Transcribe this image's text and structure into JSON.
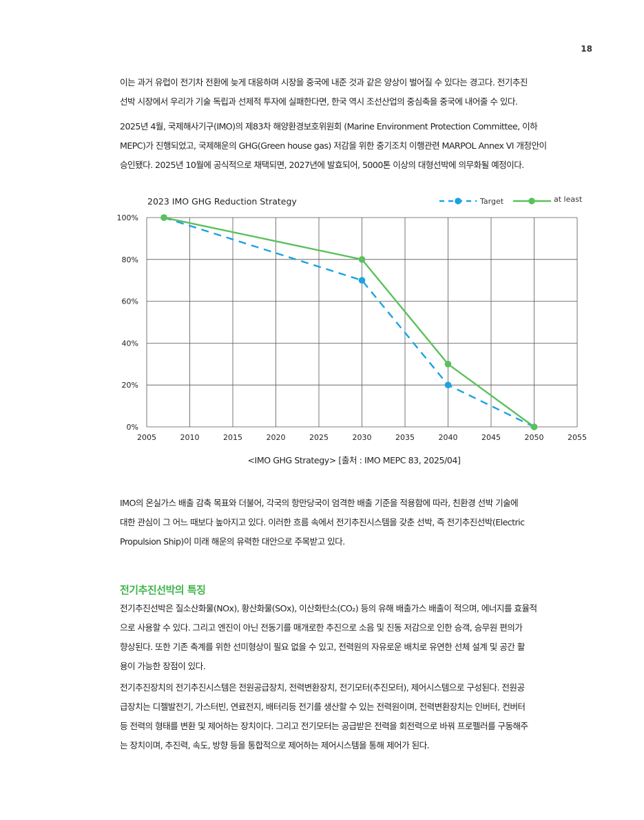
{
  "page": {
    "number": "18"
  },
  "paragraphs": [
    {
      "lines": [
        "이는 과거 유럽이 전기차 전환에 늦게 대응하며 시장을 중국에 내준 것과 같은 양상이 벌어질 수 있다는 경고다. 전기추진",
        "선박 시장에서 우리가 기술 독립과 선제적 투자에 실패한다면, 한국 역시 조선산업의 중심축을 중국에 내어줄 수 있다."
      ]
    },
    {
      "lines": [
        "2025년 4월, 국제해사기구(IMO)의 제83차 해양환경보호위원회 (Marine Environment Protection Committee, 이하",
        "MEPC)가 진행되었고, 국제해운의 GHG(Green house gas) 저감을 위한 중기조치 이행관련 MARPOL Annex VI 개정안이",
        "승인됐다. 2025년 10월에 공식적으로 채택되면, 2027년에 발효되어, 5000톤 이상의 대형선박에 의무화될 예정이다."
      ]
    },
    {
      "lines": [
        "IMO의 온실가스 배출 감축 목표와 더불어, 각국의 항만당국이 엄격한 배출 기준을 적용함에 따라, 친환경 선박 기술에",
        "대한 관심이 그 어느 때보다 높아지고 있다. 이러한 흐름 속에서 전기추진시스템을 갖춘 선박, 즉 전기추진선박(Electric",
        "Propulsion Ship)이 미래 해운의 유력한 대안으로 주목받고 있다."
      ]
    },
    {
      "lines": [
        "전기추진선박은 질소산화물(NOx), 황산화물(SOx), 이산화탄소(CO₂) 등의 유해 배출가스 배출이 적으며, 에너지를 효율적",
        "으로 사용할 수 있다. 그리고 엔진이 아닌 전동기를 매개로한 추진으로 소음 및 진동 저감으로 인한 승객, 승무원 편의가",
        "향상된다. 또한 기존 축계를 위한 선미형상이 필요 없을 수 있고, 전력원의 자유로운 배치로 유연한 선체 설계 및 공간 활",
        "용이 가능한 장점이 있다."
      ]
    },
    {
      "lines": [
        "전기추진장치의 전기추진시스템은 전원공급장치, 전력변환장치, 전기모터(추진모터), 제어시스템으로 구성된다. 전원공",
        "급장치는 디젤발전기, 가스터빈, 연료전지, 배터리등 전기를 생산할 수 있는 전력원이며, 전력변환장치는 인버터, 컨버터",
        "등 전력의 형태를 변환 및 제어하는 장치이다. 그리고 전기모터는 공급받은 전력을 회전력으로 바꿔 프로펠러를 구동해주",
        "는 장치이며, 추진력, 속도, 방향 등을 통합적으로 제어하는 제어시스템을 통해 제어가 된다."
      ]
    }
  ],
  "section": {
    "heading": "전기추진선박의 특징"
  },
  "chart_caption": "<IMO GHG Strategy> [출처 : IMO MEPC 83, 2025/04]",
  "colors": {
    "target": "#1aa3e0",
    "at_least": "#59c15a",
    "heading": "#3fb44a",
    "grid": "#555555"
  },
  "chart_data": {
    "type": "line",
    "title": "2023 IMO GHG Reduction Strategy",
    "xlabel": "",
    "ylabel": "",
    "xlim": [
      2005,
      2055
    ],
    "ylim": [
      0,
      100
    ],
    "x_ticks": [
      "2005",
      "2010",
      "2015",
      "2020",
      "2025",
      "2030",
      "2035",
      "2040",
      "2045",
      "2050",
      "2055"
    ],
    "y_ticks": [
      "0%",
      "20%",
      "40%",
      "60%",
      "80%",
      "100%"
    ],
    "grid": true,
    "legend_position": "top-right",
    "series": [
      {
        "name": "Target",
        "style": "dashed",
        "color": "#1aa3e0",
        "points": [
          {
            "x": 2007,
            "y": 100
          },
          {
            "x": 2030,
            "y": 70
          },
          {
            "x": 2040,
            "y": 20
          },
          {
            "x": 2050,
            "y": 0
          }
        ]
      },
      {
        "name": "at least",
        "style": "solid",
        "color": "#59c15a",
        "points": [
          {
            "x": 2007,
            "y": 100
          },
          {
            "x": 2030,
            "y": 80
          },
          {
            "x": 2040,
            "y": 30
          },
          {
            "x": 2050,
            "y": 0
          }
        ]
      }
    ]
  }
}
